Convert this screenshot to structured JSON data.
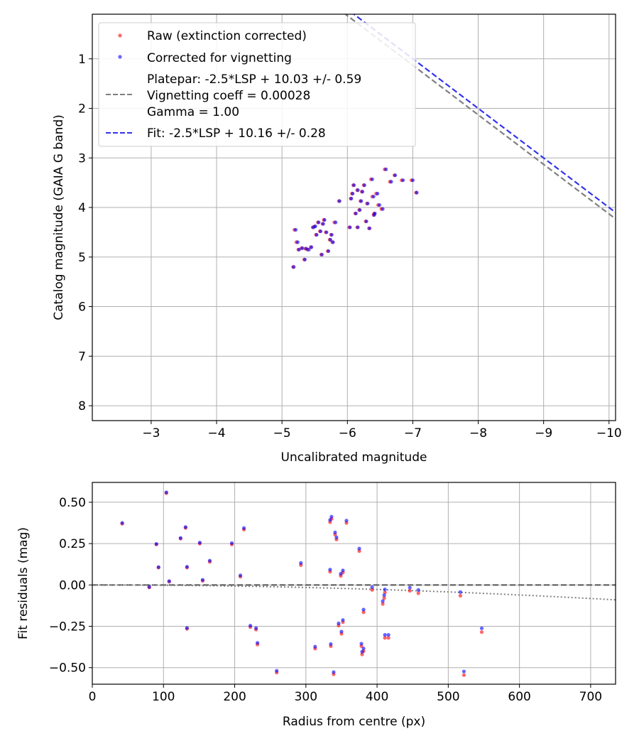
{
  "chart_data": [
    {
      "type": "scatter",
      "xlabel": "Uncalibrated magnitude",
      "ylabel": "Catalog magnitude (GAIA G band)",
      "xlim": [
        -2.1,
        -10.1
      ],
      "ylim": [
        8.3,
        0.1
      ],
      "x_inverted": true,
      "y_inverted": true,
      "grid": true,
      "legend_position": "upper-left",
      "xticks": [
        -3,
        -4,
        -5,
        -6,
        -7,
        -8,
        -9,
        -10
      ],
      "xtick_labels": [
        "−3",
        "−4",
        "−5",
        "−6",
        "−7",
        "−8",
        "−9",
        "−10"
      ],
      "yticks": [
        1,
        2,
        3,
        4,
        5,
        6,
        7,
        8
      ],
      "ytick_labels": [
        "1",
        "2",
        "3",
        "4",
        "5",
        "6",
        "7",
        "8"
      ],
      "legend": [
        {
          "label": "Raw (extinction corrected)",
          "kind": "dot",
          "color": "#ff0000"
        },
        {
          "label": "Corrected for vignetting",
          "kind": "dot",
          "color": "#0000ff"
        },
        {
          "label": "Platepar: -2.5*LSP + 10.03 +/- 0.59",
          "kind": "none"
        },
        {
          "label": "Vignetting coeff = 0.00028",
          "kind": "dash",
          "color": "#808080"
        },
        {
          "label": "Gamma = 1.00",
          "kind": "none"
        },
        {
          "label": "Fit: -2.5*LSP + 10.16 +/- 0.28",
          "kind": "dash",
          "color": "#3333ee"
        }
      ],
      "lines": [
        {
          "name": "Platepar",
          "slope": -1,
          "intercept": -5.87,
          "color": "#808080"
        },
        {
          "name": "Fit",
          "slope": -1,
          "intercept": -6.0,
          "color": "#3333ee"
        }
      ],
      "series": [
        {
          "name": "Raw (extinction corrected)",
          "color": "#ff0000",
          "x": [
            -5.17,
            -5.19,
            -5.22,
            -5.25,
            -5.3,
            -5.34,
            -5.36,
            -5.39,
            -5.44,
            -5.47,
            -5.5,
            -5.52,
            -5.55,
            -5.58,
            -5.6,
            -5.62,
            -5.64,
            -5.67,
            -5.7,
            -5.73,
            -5.75,
            -5.77,
            -5.8,
            -5.87,
            -6.03,
            -6.05,
            -6.07,
            -6.09,
            -6.12,
            -6.15,
            -6.18,
            -6.2,
            -6.22,
            -6.25,
            -6.28,
            -6.3,
            -6.33,
            -6.36,
            -6.38,
            -6.41,
            -6.44,
            -6.47,
            -6.52,
            -6.57,
            -6.65,
            -6.72,
            -6.83,
            -6.98,
            -7.05,
            -6.4,
            -6.15
          ],
          "y": [
            5.2,
            4.45,
            4.7,
            4.85,
            4.82,
            5.05,
            4.83,
            4.85,
            4.8,
            4.4,
            4.38,
            4.55,
            4.3,
            4.48,
            4.95,
            4.33,
            4.25,
            4.5,
            4.88,
            4.65,
            4.55,
            4.7,
            4.3,
            3.87,
            4.4,
            3.82,
            3.72,
            3.55,
            4.12,
            3.65,
            4.05,
            3.87,
            3.68,
            3.55,
            4.28,
            3.92,
            4.42,
            3.43,
            3.78,
            4.12,
            3.72,
            3.95,
            4.03,
            3.23,
            3.48,
            3.35,
            3.45,
            3.45,
            3.7,
            4.15,
            4.4
          ]
        },
        {
          "name": "Corrected for vignetting",
          "color": "#0000ff",
          "x": [
            -5.18,
            -5.21,
            -5.24,
            -5.26,
            -5.31,
            -5.35,
            -5.37,
            -5.41,
            -5.45,
            -5.48,
            -5.51,
            -5.53,
            -5.56,
            -5.59,
            -5.61,
            -5.63,
            -5.65,
            -5.68,
            -5.71,
            -5.74,
            -5.76,
            -5.78,
            -5.82,
            -5.88,
            -6.04,
            -6.06,
            -6.08,
            -6.1,
            -6.13,
            -6.16,
            -6.19,
            -6.21,
            -6.23,
            -6.26,
            -6.29,
            -6.31,
            -6.34,
            -6.38,
            -6.4,
            -6.42,
            -6.46,
            -6.49,
            -6.54,
            -6.59,
            -6.67,
            -6.73,
            -6.85,
            -7.0,
            -7.06,
            -6.41,
            -6.16
          ],
          "y": [
            5.2,
            4.45,
            4.7,
            4.85,
            4.82,
            5.05,
            4.83,
            4.85,
            4.8,
            4.4,
            4.38,
            4.55,
            4.3,
            4.48,
            4.95,
            4.33,
            4.25,
            4.5,
            4.88,
            4.65,
            4.55,
            4.7,
            4.3,
            3.87,
            4.4,
            3.82,
            3.72,
            3.55,
            4.12,
            3.65,
            4.05,
            3.87,
            3.68,
            3.55,
            4.28,
            3.92,
            4.42,
            3.43,
            3.78,
            4.12,
            3.72,
            3.95,
            4.03,
            3.23,
            3.48,
            3.35,
            3.45,
            3.45,
            3.7,
            4.15,
            4.4
          ]
        }
      ]
    },
    {
      "type": "scatter",
      "xlabel": "Radius from centre (px)",
      "ylabel": "Fit residuals (mag)",
      "xlim": [
        0,
        735
      ],
      "ylim": [
        -0.6,
        0.62
      ],
      "grid": true,
      "xticks": [
        0,
        100,
        200,
        300,
        400,
        500,
        600,
        700
      ],
      "xtick_labels": [
        "0",
        "100",
        "200",
        "300",
        "400",
        "500",
        "600",
        "700"
      ],
      "yticks": [
        -0.5,
        -0.25,
        0.0,
        0.25,
        0.5
      ],
      "ytick_labels": [
        "−0.50",
        "−0.25",
        "0.00",
        "0.25",
        "0.50"
      ],
      "reference_line": {
        "y": 0,
        "color": "#555555",
        "style": "dashed"
      },
      "vignetting_curve": {
        "coefficient": 0.00028,
        "color": "#808080",
        "style": "dotted"
      },
      "series": [
        {
          "name": "Raw (extinction corrected)",
          "color": "#ff0000",
          "x": [
            42,
            80,
            90,
            93,
            104,
            108,
            124,
            131,
            133,
            133,
            151,
            155,
            165,
            196,
            208,
            213,
            222,
            230,
            232,
            259,
            293,
            313,
            334,
            334,
            335,
            336,
            339,
            341,
            343,
            346,
            349,
            350,
            352,
            352,
            357,
            375,
            378,
            379,
            381,
            381,
            393,
            408,
            410,
            411,
            411,
            416,
            446,
            458,
            517,
            522,
            547
          ],
          "y": [
            0.37,
            -0.015,
            0.245,
            0.105,
            0.555,
            0.02,
            0.28,
            0.345,
            0.105,
            -0.265,
            0.25,
            0.025,
            0.14,
            0.245,
            0.05,
            0.335,
            -0.255,
            -0.27,
            -0.36,
            -0.53,
            0.12,
            -0.385,
            0.38,
            0.08,
            -0.37,
            0.4,
            -0.54,
            0.305,
            0.275,
            -0.245,
            0.055,
            -0.295,
            0.075,
            -0.225,
            0.375,
            0.205,
            -0.37,
            -0.42,
            -0.165,
            -0.4,
            -0.03,
            -0.115,
            -0.08,
            -0.045,
            -0.32,
            -0.32,
            -0.035,
            -0.05,
            -0.065,
            -0.545,
            -0.285
          ]
        },
        {
          "name": "Corrected for vignetting",
          "color": "#0000ff",
          "x": [
            42,
            80,
            90,
            93,
            104,
            108,
            124,
            131,
            133,
            133,
            151,
            155,
            165,
            196,
            208,
            213,
            222,
            230,
            232,
            259,
            293,
            313,
            334,
            334,
            335,
            336,
            339,
            341,
            343,
            346,
            349,
            350,
            352,
            352,
            357,
            375,
            378,
            379,
            381,
            381,
            393,
            408,
            410,
            411,
            411,
            416,
            446,
            458,
            517,
            522,
            547
          ],
          "y": [
            0.375,
            -0.012,
            0.248,
            0.108,
            0.56,
            0.023,
            0.284,
            0.35,
            0.11,
            -0.26,
            0.256,
            0.031,
            0.147,
            0.253,
            0.058,
            0.344,
            -0.246,
            -0.261,
            -0.35,
            -0.519,
            0.133,
            -0.373,
            0.393,
            0.093,
            -0.357,
            0.413,
            -0.527,
            0.318,
            0.288,
            -0.232,
            0.068,
            -0.282,
            0.088,
            -0.212,
            0.389,
            0.22,
            -0.355,
            -0.404,
            -0.149,
            -0.384,
            -0.013,
            -0.098,
            -0.062,
            -0.027,
            -0.302,
            -0.302,
            -0.016,
            -0.03,
            -0.043,
            -0.523,
            -0.262
          ]
        }
      ]
    }
  ]
}
